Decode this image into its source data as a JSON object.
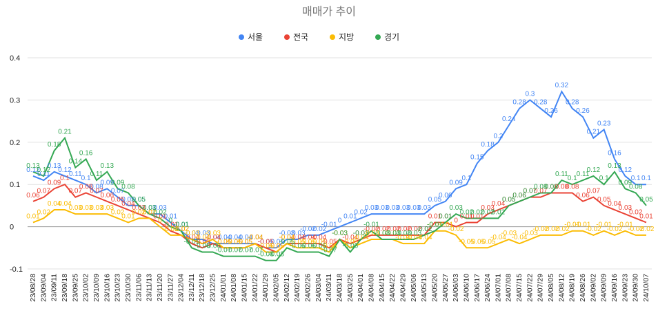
{
  "chart_data": {
    "type": "line",
    "title": "매매가 추이",
    "categories": [
      "23/08/28",
      "23/09/04",
      "23/09/11",
      "23/09/18",
      "23/09/25",
      "23/10/02",
      "23/10/09",
      "23/10/16",
      "23/10/23",
      "23/10/30",
      "23/11/06",
      "23/11/13",
      "23/11/20",
      "23/11/27",
      "23/12/04",
      "23/12/11",
      "23/12/18",
      "23/12/25",
      "24/01/01",
      "24/01/08",
      "24/01/15",
      "24/01/22",
      "24/01/29",
      "24/02/05",
      "24/02/12",
      "24/02/19",
      "24/02/26",
      "24/03/04",
      "24/03/11",
      "24/03/18",
      "24/03/25",
      "24/04/01",
      "24/04/08",
      "24/04/15",
      "24/04/22",
      "24/04/29",
      "24/05/06",
      "24/05/13",
      "24/05/20",
      "24/05/27",
      "24/06/03",
      "24/06/10",
      "24/06/17",
      "24/06/24",
      "24/07/01",
      "24/07/08",
      "24/07/15",
      "24/07/22",
      "24/07/29",
      "24/08/05",
      "24/08/12",
      "24/08/19",
      "24/08/26",
      "24/09/02",
      "24/09/09",
      "24/09/16",
      "24/09/23",
      "24/09/30",
      "24/10/07"
    ],
    "series": [
      {
        "name": "서울",
        "color": "#4285f4",
        "values": [
          0.12,
          0.11,
          0.13,
          0.12,
          0.11,
          0.1,
          0.08,
          0.09,
          0.07,
          0.05,
          0.05,
          0.03,
          0.03,
          0.01,
          -0.01,
          -0.03,
          -0.03,
          -0.04,
          -0.04,
          -0.04,
          -0.04,
          -0.04,
          -0.05,
          -0.05,
          -0.03,
          -0.03,
          -0.02,
          -0.02,
          -0.01,
          0.0,
          0.01,
          0.02,
          0.03,
          0.03,
          0.03,
          0.03,
          0.03,
          0.03,
          0.05,
          0.06,
          0.09,
          0.1,
          0.15,
          0.18,
          0.2,
          0.24,
          0.28,
          0.3,
          0.28,
          0.26,
          0.32,
          0.28,
          0.26,
          0.21,
          0.23,
          0.16,
          0.12,
          0.1,
          0.1
        ]
      },
      {
        "name": "전국",
        "color": "#ea4335",
        "values": [
          0.06,
          0.07,
          0.09,
          0.1,
          0.07,
          0.08,
          0.07,
          0.06,
          0.05,
          0.04,
          0.03,
          0.02,
          0.01,
          -0.01,
          -0.02,
          -0.04,
          -0.05,
          -0.04,
          -0.05,
          -0.05,
          -0.05,
          -0.04,
          -0.05,
          -0.06,
          -0.04,
          -0.04,
          -0.04,
          -0.04,
          -0.05,
          -0.03,
          -0.04,
          -0.03,
          -0.02,
          -0.02,
          -0.02,
          -0.02,
          -0.02,
          -0.02,
          0.01,
          0.01,
          0.0,
          0.01,
          0.01,
          0.03,
          0.04,
          0.05,
          0.06,
          0.07,
          0.07,
          0.08,
          0.08,
          0.08,
          0.06,
          0.07,
          0.05,
          0.04,
          0.03,
          0.02,
          0.01
        ]
      },
      {
        "name": "지방",
        "color": "#fbbc04",
        "values": [
          0.01,
          0.02,
          0.04,
          0.04,
          0.03,
          0.03,
          0.03,
          0.03,
          0.02,
          0.01,
          0.02,
          0.02,
          0.0,
          -0.02,
          -0.02,
          -0.03,
          -0.04,
          -0.03,
          -0.05,
          -0.05,
          -0.05,
          -0.04,
          -0.06,
          -0.06,
          -0.04,
          -0.05,
          -0.05,
          -0.05,
          -0.06,
          -0.03,
          -0.05,
          -0.04,
          -0.03,
          -0.03,
          -0.03,
          -0.04,
          -0.04,
          -0.04,
          -0.01,
          -0.01,
          -0.02,
          -0.05,
          -0.05,
          -0.05,
          -0.04,
          -0.03,
          -0.04,
          -0.03,
          -0.02,
          -0.02,
          -0.02,
          -0.01,
          -0.01,
          -0.02,
          -0.01,
          -0.02,
          -0.01,
          -0.02,
          -0.02
        ]
      },
      {
        "name": "경기",
        "color": "#34a853",
        "values": [
          0.13,
          0.12,
          0.18,
          0.21,
          0.14,
          0.16,
          0.11,
          0.13,
          0.09,
          0.08,
          0.05,
          0.03,
          0.02,
          0.0,
          -0.01,
          -0.05,
          -0.06,
          -0.06,
          -0.07,
          -0.07,
          -0.07,
          -0.07,
          -0.08,
          -0.08,
          -0.05,
          -0.06,
          -0.06,
          -0.06,
          -0.07,
          -0.03,
          -0.06,
          -0.03,
          -0.01,
          -0.03,
          -0.03,
          -0.03,
          -0.03,
          -0.02,
          -0.01,
          0.01,
          0.03,
          0.02,
          0.02,
          0.02,
          0.02,
          0.05,
          0.06,
          0.07,
          0.08,
          0.08,
          0.11,
          0.1,
          0.11,
          0.12,
          0.1,
          0.13,
          0.09,
          0.08,
          0.05
        ]
      }
    ],
    "ylim": [
      -0.1,
      0.4
    ],
    "yticks": [
      -0.1,
      0.0,
      0.1,
      0.2,
      0.3,
      0.4
    ],
    "grid": true,
    "legend": "top"
  }
}
